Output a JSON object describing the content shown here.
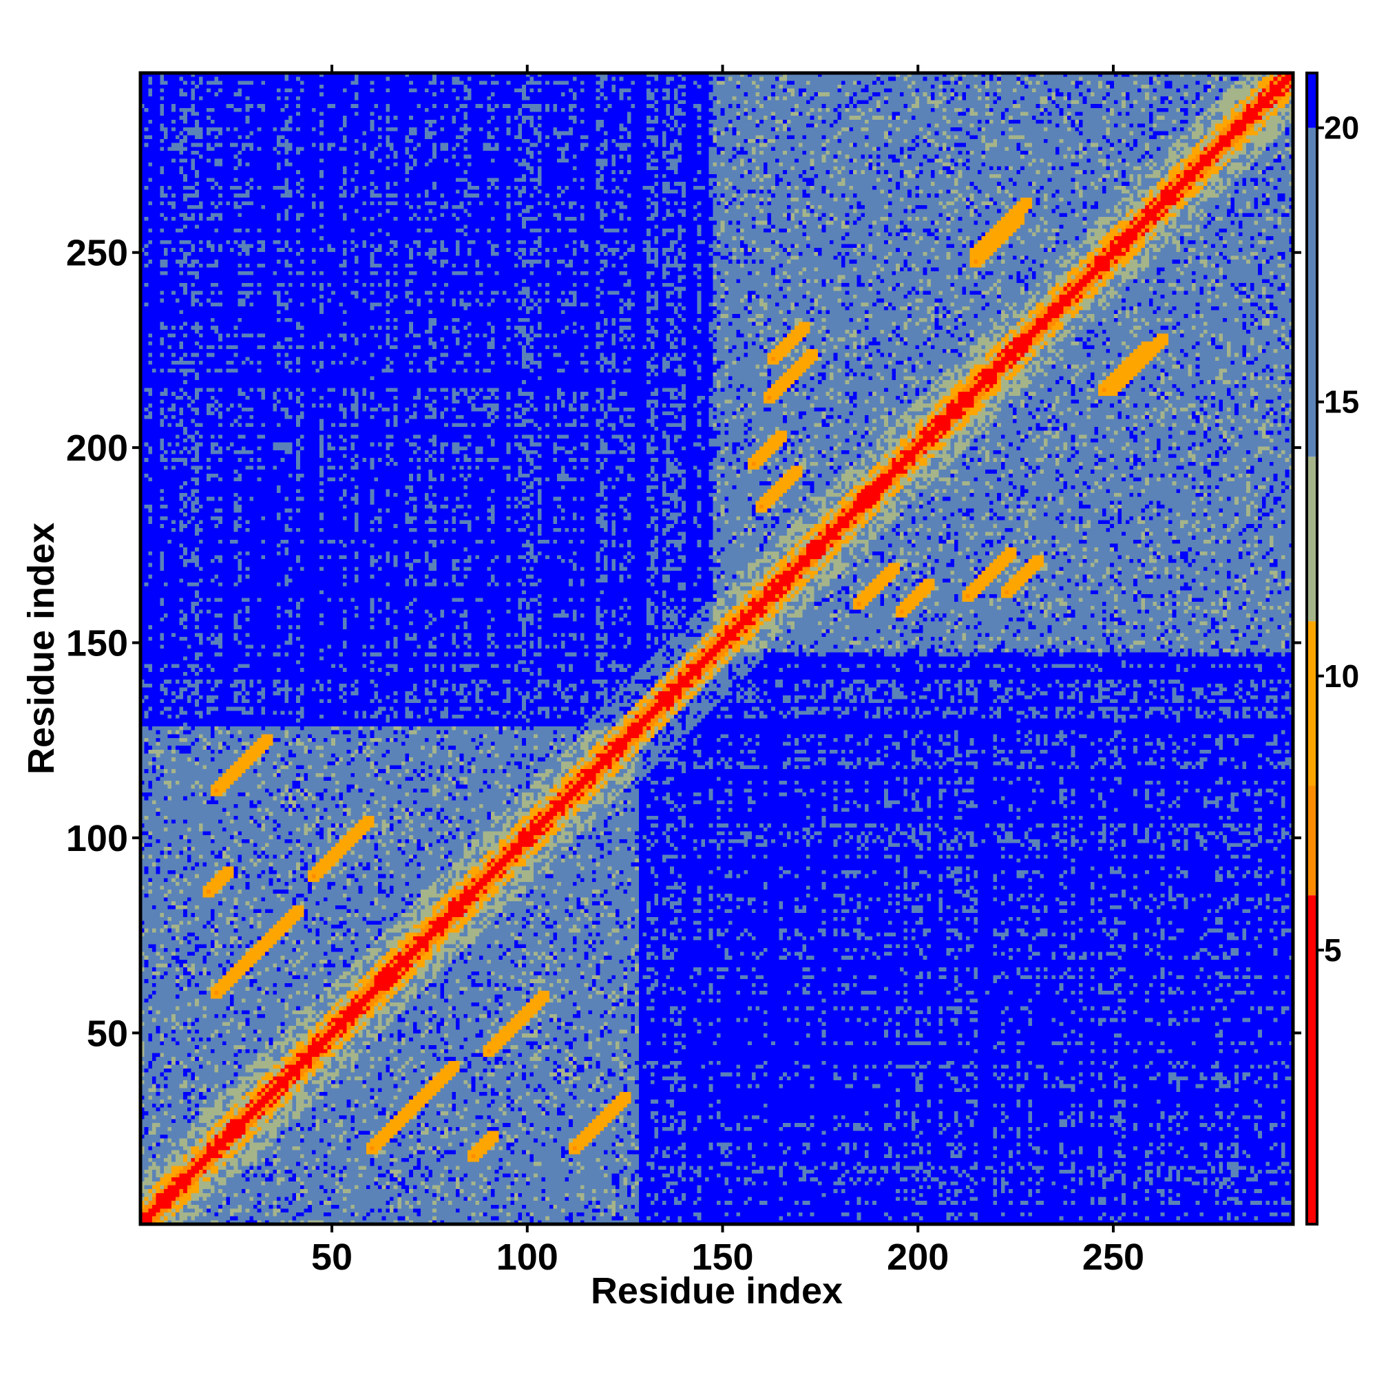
{
  "chart_data": {
    "type": "heatmap",
    "title": "",
    "xlabel": "Residue index",
    "ylabel": "Residue index",
    "n_residues": 296,
    "xlim": [
      1,
      296
    ],
    "ylim": [
      1,
      296
    ],
    "x_ticks": [
      50,
      100,
      150,
      200,
      250
    ],
    "y_ticks": [
      50,
      100,
      150,
      200,
      250
    ],
    "x_tick_labels": [
      "50",
      "100",
      "150",
      "200",
      "250"
    ],
    "y_tick_labels": [
      "50",
      "100",
      "150",
      "200",
      "250"
    ],
    "colorbar": {
      "range": [
        0,
        21
      ],
      "ticks": [
        5,
        10,
        15,
        20
      ],
      "tick_labels": [
        "5",
        "10",
        "15",
        "20"
      ],
      "palette": [
        {
          "min": 0,
          "max": 6,
          "color": "#ff0000"
        },
        {
          "min": 6,
          "max": 8,
          "color": "#ff8c00"
        },
        {
          "min": 8,
          "max": 11,
          "color": "#ffa500"
        },
        {
          "min": 11,
          "max": 14,
          "color": "#a6b48a"
        },
        {
          "min": 14,
          "max": 20,
          "color": "#5b83b8"
        },
        {
          "min": 20,
          "max": 21,
          "color": "#0000ff"
        }
      ]
    },
    "cutoff": 20,
    "structure": {
      "domains": [
        {
          "start": 1,
          "end": 128,
          "label": ""
        },
        {
          "start": 148,
          "end": 296,
          "label": ""
        }
      ],
      "interdomain_contact_level": 16,
      "intradomain_contact_level": 15.5,
      "off_diagonal_contact_bands": [
        {
          "i_start": 160,
          "j_start": 185,
          "length": 10
        },
        {
          "i_start": 162,
          "j_start": 213,
          "length": 12
        },
        {
          "i_start": 196,
          "j_start": 158,
          "length": 8
        },
        {
          "i_start": 215,
          "j_start": 248,
          "length": 12
        },
        {
          "i_start": 250,
          "j_start": 215,
          "length": 14
        },
        {
          "i_start": 223,
          "j_start": 163,
          "length": 9
        },
        {
          "i_start": 20,
          "j_start": 112,
          "length": 14
        },
        {
          "i_start": 18,
          "j_start": 86,
          "length": 6
        },
        {
          "i_start": 60,
          "j_start": 20,
          "length": 10
        },
        {
          "i_start": 90,
          "j_start": 45,
          "length": 15
        },
        {
          "i_start": 70,
          "j_start": 30,
          "length": 12
        }
      ]
    }
  }
}
